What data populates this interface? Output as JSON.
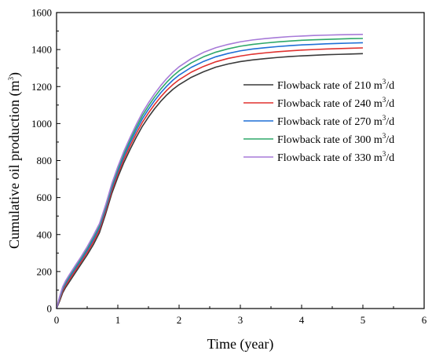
{
  "chart_data": {
    "type": "line",
    "xlabel": "Time (year)",
    "ylabel_main": "Cumulative oil production (m",
    "ylabel_sup": "3",
    "ylabel_close": ")",
    "xlim": [
      0,
      6
    ],
    "ylim": [
      0,
      1600
    ],
    "xticks": [
      "0",
      "1",
      "2",
      "3",
      "4",
      "5",
      "6"
    ],
    "yticks": [
      "0",
      "200",
      "400",
      "600",
      "800",
      "1000",
      "1200",
      "1400",
      "1600"
    ],
    "grid": false,
    "legend_position": "right",
    "x": [
      0,
      0.05,
      0.1,
      0.15,
      0.2,
      0.3,
      0.4,
      0.5,
      0.6,
      0.7,
      0.8,
      0.9,
      1.0,
      1.1,
      1.2,
      1.3,
      1.4,
      1.5,
      1.6,
      1.7,
      1.8,
      1.9,
      2.0,
      2.2,
      2.4,
      2.6,
      2.8,
      3.0,
      3.2,
      3.4,
      3.6,
      3.8,
      4.0,
      4.2,
      4.4,
      4.6,
      4.8,
      5.0
    ],
    "series": [
      {
        "legend_prefix": "Flowback rate of 210 m",
        "legend_sup": "3",
        "legend_suffix": "/d",
        "color": "#3a3a3a",
        "values": [
          0,
          40,
          85,
          115,
          140,
          190,
          240,
          290,
          345,
          410,
          510,
          620,
          710,
          790,
          860,
          925,
          985,
          1035,
          1080,
          1120,
          1155,
          1185,
          1210,
          1250,
          1280,
          1305,
          1322,
          1335,
          1344,
          1351,
          1357,
          1362,
          1366,
          1369,
          1372,
          1374,
          1376,
          1378
        ]
      },
      {
        "legend_prefix": "Flowback rate of  240 m",
        "legend_sup": "3",
        "legend_suffix": "/d",
        "color": "#e0302e",
        "values": [
          0,
          48,
          95,
          126,
          152,
          202,
          252,
          303,
          360,
          425,
          525,
          636,
          727,
          808,
          879,
          945,
          1006,
          1057,
          1103,
          1144,
          1180,
          1211,
          1237,
          1278,
          1309,
          1334,
          1352,
          1365,
          1375,
          1382,
          1388,
          1393,
          1397,
          1400,
          1403,
          1405,
          1407,
          1409
        ]
      },
      {
        "legend_prefix": "Flowback rate of  270 m",
        "legend_sup": "3",
        "legend_suffix": "/d",
        "color": "#1f6fd6",
        "values": [
          0,
          55,
          105,
          136,
          163,
          213,
          263,
          315,
          373,
          438,
          538,
          650,
          742,
          824,
          896,
          963,
          1025,
          1077,
          1124,
          1166,
          1203,
          1235,
          1262,
          1304,
          1336,
          1361,
          1379,
          1393,
          1403,
          1410,
          1416,
          1421,
          1425,
          1428,
          1431,
          1433,
          1435,
          1437
        ]
      },
      {
        "legend_prefix": "Flowback rate of  300 m",
        "legend_sup": "3",
        "legend_suffix": "/d",
        "color": "#2ea86a",
        "values": [
          0,
          60,
          112,
          144,
          171,
          222,
          272,
          325,
          384,
          449,
          549,
          662,
          755,
          838,
          911,
          979,
          1042,
          1095,
          1143,
          1186,
          1224,
          1257,
          1285,
          1328,
          1361,
          1386,
          1404,
          1418,
          1428,
          1435,
          1441,
          1446,
          1450,
          1453,
          1455,
          1457,
          1459,
          1460
        ]
      },
      {
        "legend_prefix": "Flowback rate of 330 m",
        "legend_sup": "3",
        "legend_suffix": "/d",
        "color": "#a77ad8",
        "values": [
          0,
          65,
          118,
          151,
          178,
          230,
          280,
          334,
          394,
          459,
          559,
          673,
          767,
          851,
          925,
          994,
          1058,
          1112,
          1161,
          1205,
          1244,
          1278,
          1307,
          1351,
          1385,
          1410,
          1428,
          1442,
          1452,
          1459,
          1465,
          1470,
          1473,
          1476,
          1478,
          1480,
          1481,
          1482
        ]
      }
    ]
  }
}
